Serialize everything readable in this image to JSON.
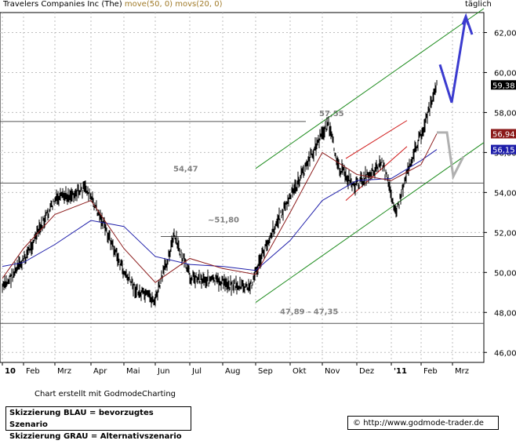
{
  "header": {
    "title": "Travelers Companies Inc (The)",
    "indicator_50": "move(50, 0)",
    "indicator_20": "movs(20, 0)",
    "period": "täglich"
  },
  "footer": {
    "credit": "Chart erstellt mit GodmodeCharting",
    "legend_blue": "Skizzierung BLAU = bevorzugtes Szenario",
    "legend_grey": "Skizzierung GRAU = Alternativszenario",
    "source_symbol": "©",
    "source_url": "http://www.godmode-trader.de"
  },
  "chart_data": {
    "type": "line",
    "ylim": [
      45.5,
      63.0
    ],
    "y_ticks": [
      "46,00",
      "48,00",
      "50,00",
      "52,00",
      "54,00",
      "56,00",
      "58,00",
      "60,00",
      "62,00"
    ],
    "x_labels": [
      "10",
      "Feb",
      "Mrz",
      "Apr",
      "Mai",
      "Jun",
      "Jul",
      "Aug",
      "Sep",
      "Okt",
      "Nov",
      "Dez",
      "'11",
      "Feb",
      "Mrz"
    ],
    "grid": true,
    "price_labels": [
      {
        "value": 59.38,
        "text": "59,38",
        "color": "#000000"
      },
      {
        "value": 56.94,
        "text": "56,94",
        "color": "#8b1a1a"
      },
      {
        "value": 56.15,
        "text": "56,15",
        "color": "#1e1eaa"
      }
    ],
    "horizontal_levels": [
      {
        "value": 57.55,
        "text": "57,55"
      },
      {
        "value": 54.47,
        "text": "54,47"
      },
      {
        "value": 51.8,
        "text": "~51,80"
      },
      {
        "value": 47.45,
        "text": "47,89 - 47,35"
      }
    ],
    "series": [
      {
        "name": "Kurs",
        "color": "#000000",
        "values": [
          [
            "10",
            49.2
          ],
          [
            "Feb",
            50.6
          ],
          [
            "Mrz",
            53.6
          ],
          [
            "Apr",
            54.2
          ],
          [
            "Apr",
            52.6
          ],
          [
            "Mai",
            50.0
          ],
          [
            "Mai",
            49.0
          ],
          [
            "Jun",
            48.6
          ],
          [
            "Jun",
            51.8
          ],
          [
            "Jul",
            49.8
          ],
          [
            "Aug",
            49.5
          ],
          [
            "Sep",
            49.2
          ],
          [
            "Sep",
            51.9
          ],
          [
            "Okt",
            54.2
          ],
          [
            "Nov",
            57.5
          ],
          [
            "Nov",
            55.3
          ],
          [
            "Dez",
            54.3
          ],
          [
            "Dez",
            55.5
          ],
          [
            "'11",
            53.0
          ],
          [
            "'11",
            55.2
          ],
          [
            "Feb",
            57.0
          ],
          [
            "Feb",
            59.38
          ]
        ]
      },
      {
        "name": "move(50, 0)",
        "color": "#1e1eaa",
        "values": [
          [
            "10",
            50.3
          ],
          [
            "Feb",
            50.5
          ],
          [
            "Mrz",
            51.4
          ],
          [
            "Apr",
            52.6
          ],
          [
            "Mai",
            52.3
          ],
          [
            "Jun",
            50.8
          ],
          [
            "Jul",
            50.4
          ],
          [
            "Aug",
            50.3
          ],
          [
            "Sep",
            50.1
          ],
          [
            "Okt",
            51.6
          ],
          [
            "Nov",
            53.6
          ],
          [
            "Dez",
            54.6
          ],
          [
            "'11",
            54.7
          ],
          [
            "Feb",
            55.6
          ],
          [
            "Feb",
            56.15
          ]
        ]
      },
      {
        "name": "movs(20, 0)",
        "color": "#8b1a1a",
        "values": [
          [
            "10",
            49.7
          ],
          [
            "Feb",
            51.2
          ],
          [
            "Mrz",
            52.9
          ],
          [
            "Apr",
            53.6
          ],
          [
            "Mai",
            51.2
          ],
          [
            "Jun",
            49.5
          ],
          [
            "Jul",
            50.7
          ],
          [
            "Aug",
            50.2
          ],
          [
            "Sep",
            49.9
          ],
          [
            "Okt",
            53.0
          ],
          [
            "Nov",
            56.0
          ],
          [
            "Dez",
            54.9
          ],
          [
            "'11",
            54.6
          ],
          [
            "Feb",
            55.4
          ],
          [
            "Feb",
            56.94
          ]
        ]
      }
    ]
  }
}
